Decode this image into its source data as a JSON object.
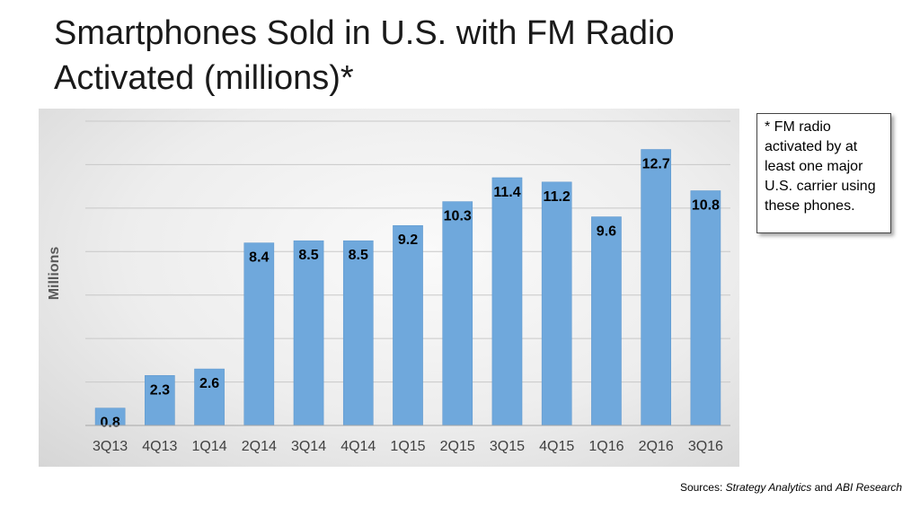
{
  "title_line1": "Smartphones Sold in U.S. with FM Radio",
  "title_line2": "Activated (millions)*",
  "note": "* FM radio activated by at least one major U.S. carrier using these phones.",
  "sources": {
    "prefix": "Sources: ",
    "source1": "Strategy Analytics",
    "joiner": " and ",
    "source2": "ABI Research"
  },
  "chart_data": {
    "type": "bar",
    "title": "Smartphones Sold in U.S. with FM Radio Activated (millions)*",
    "ylabel": "Millions",
    "xlabel": "",
    "categories": [
      "3Q13",
      "4Q13",
      "1Q14",
      "2Q14",
      "3Q14",
      "4Q14",
      "1Q15",
      "2Q15",
      "3Q15",
      "4Q15",
      "1Q16",
      "2Q16",
      "3Q16"
    ],
    "values": [
      0.8,
      2.3,
      2.6,
      8.4,
      8.5,
      8.5,
      9.2,
      10.3,
      11.4,
      11.2,
      9.6,
      12.7,
      10.8
    ],
    "value_labels": [
      "0.8",
      "2.3",
      "2.6",
      "8.4",
      "8.5",
      "8.5",
      "9.2",
      "10.3",
      "11.4",
      "11.2",
      "9.6",
      "12.7",
      "10.8"
    ],
    "ylim": [
      0,
      14
    ],
    "y_gridline_step": 2,
    "y_tick_labels_visible": false,
    "grid": true,
    "bar_color": "#6fa8dc",
    "gridline_color": "#c8c8c8",
    "legend": "none"
  }
}
